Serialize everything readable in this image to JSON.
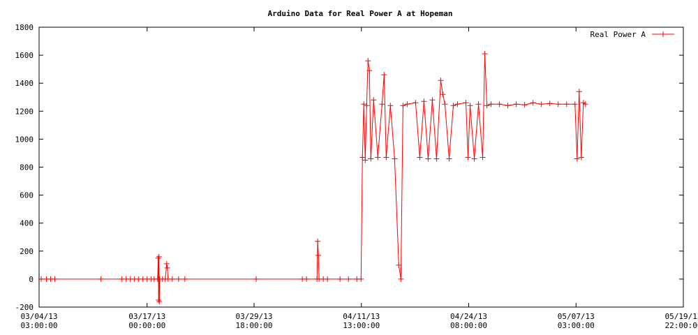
{
  "chart_data": {
    "type": "line",
    "title": "Arduino Data for Real Power A at Hopeman",
    "xlabel": "",
    "ylabel": "",
    "ylim": [
      -200,
      1800
    ],
    "yticks": [
      -200,
      0,
      200,
      400,
      600,
      800,
      1000,
      1200,
      1400,
      1600,
      1800
    ],
    "xlim": [
      "03/04/13 03:00:00",
      "05/19/13 22:00:00"
    ],
    "xticks": [
      {
        "date": "03/04/13",
        "time": "03:00:00"
      },
      {
        "date": "03/17/13",
        "time": "00:00:00"
      },
      {
        "date": "03/29/13",
        "time": "18:00:00"
      },
      {
        "date": "04/11/13",
        "time": "13:00:00"
      },
      {
        "date": "04/24/13",
        "time": "08:00:00"
      },
      {
        "date": "05/07/13",
        "time": "03:00:00"
      },
      {
        "date": "05/19/13",
        "time": "22:00:00"
      }
    ],
    "grid": false,
    "legend_position": "top-right",
    "series": [
      {
        "name": "Real Power A",
        "color": "#ff0000",
        "points": [
          [
            "03/04/13 09:00",
            0
          ],
          [
            "03/05/13 00:00",
            0
          ],
          [
            "03/05/13 12:00",
            0
          ],
          [
            "03/06/13 00:00",
            0
          ],
          [
            "03/11/13 12:00",
            0
          ],
          [
            "03/14/13 00:00",
            0
          ],
          [
            "03/14/13 12:00",
            0
          ],
          [
            "03/15/13 00:00",
            0
          ],
          [
            "03/15/13 12:00",
            0
          ],
          [
            "03/16/13 00:00",
            0
          ],
          [
            "03/16/13 12:00",
            0
          ],
          [
            "03/17/13 00:00",
            0
          ],
          [
            "03/17/13 12:00",
            0
          ],
          [
            "03/17/13 20:00",
            0
          ],
          [
            "03/18/13 06:00",
            0
          ],
          [
            "03/18/13 08:00",
            150
          ],
          [
            "03/18/13 09:00",
            -150
          ],
          [
            "03/18/13 10:00",
            160
          ],
          [
            "03/18/13 11:00",
            -160
          ],
          [
            "03/18/13 12:00",
            0
          ],
          [
            "03/18/13 20:00",
            0
          ],
          [
            "03/19/13 04:00",
            0
          ],
          [
            "03/19/13 08:00",
            110
          ],
          [
            "03/19/13 10:00",
            80
          ],
          [
            "03/19/13 12:00",
            0
          ],
          [
            "03/20/13 00:00",
            0
          ],
          [
            "03/20/13 18:00",
            0
          ],
          [
            "03/21/13 12:00",
            0
          ],
          [
            "03/30/13 00:00",
            0
          ],
          [
            "04/04/13 12:00",
            0
          ],
          [
            "04/05/13 00:00",
            0
          ],
          [
            "04/06/13 06:00",
            0
          ],
          [
            "04/06/13 08:00",
            270
          ],
          [
            "04/06/13 10:00",
            170
          ],
          [
            "04/06/13 12:00",
            0
          ],
          [
            "04/07/13 00:00",
            0
          ],
          [
            "04/07/13 12:00",
            0
          ],
          [
            "04/09/13 00:00",
            0
          ],
          [
            "04/10/13 00:00",
            0
          ],
          [
            "04/11/13 00:00",
            0
          ],
          [
            "04/11/13 12:00",
            0
          ],
          [
            "04/11/13 16:00",
            870
          ],
          [
            "04/11/13 20:00",
            1250
          ],
          [
            "04/12/13 00:00",
            850
          ],
          [
            "04/12/13 04:00",
            1240
          ],
          [
            "04/12/13 08:00",
            1560
          ],
          [
            "04/12/13 12:00",
            1490
          ],
          [
            "04/12/13 16:00",
            860
          ],
          [
            "04/13/13 00:00",
            1280
          ],
          [
            "04/13/13 12:00",
            870
          ],
          [
            "04/14/13 00:00",
            1250
          ],
          [
            "04/14/13 06:00",
            1460
          ],
          [
            "04/14/13 12:00",
            870
          ],
          [
            "04/15/13 00:00",
            1240
          ],
          [
            "04/15/13 12:00",
            860
          ],
          [
            "04/16/13 00:00",
            100
          ],
          [
            "04/16/13 06:00",
            0
          ],
          [
            "04/16/13 12:00",
            1240
          ],
          [
            "04/17/13 00:00",
            1250
          ],
          [
            "04/18/13 00:00",
            1260
          ],
          [
            "04/18/13 12:00",
            870
          ],
          [
            "04/19/13 00:00",
            1270
          ],
          [
            "04/19/13 12:00",
            860
          ],
          [
            "04/20/13 00:00",
            1280
          ],
          [
            "04/20/13 12:00",
            860
          ],
          [
            "04/21/13 00:00",
            1420
          ],
          [
            "04/21/13 06:00",
            1320
          ],
          [
            "04/21/13 12:00",
            1250
          ],
          [
            "04/22/13 00:00",
            860
          ],
          [
            "04/22/13 12:00",
            1240
          ],
          [
            "04/23/13 00:00",
            1250
          ],
          [
            "04/24/13 00:00",
            1260
          ],
          [
            "04/24/13 06:00",
            870
          ],
          [
            "04/24/13 12:00",
            1240
          ],
          [
            "04/25/13 00:00",
            860
          ],
          [
            "04/25/13 12:00",
            1250
          ],
          [
            "04/26/13 00:00",
            870
          ],
          [
            "04/26/13 06:00",
            1610
          ],
          [
            "04/26/13 12:00",
            1240
          ],
          [
            "04/27/13 00:00",
            1250
          ],
          [
            "04/28/13 00:00",
            1250
          ],
          [
            "04/29/13 00:00",
            1240
          ],
          [
            "04/30/13 00:00",
            1250
          ],
          [
            "05/01/13 00:00",
            1245
          ],
          [
            "05/02/13 00:00",
            1260
          ],
          [
            "05/03/13 00:00",
            1250
          ],
          [
            "05/04/13 00:00",
            1255
          ],
          [
            "05/05/13 00:00",
            1250
          ],
          [
            "05/06/13 00:00",
            1250
          ],
          [
            "05/07/13 00:00",
            1250
          ],
          [
            "05/07/13 06:00",
            860
          ],
          [
            "05/07/13 12:00",
            1340
          ],
          [
            "05/07/13 18:00",
            870
          ],
          [
            "05/08/13 00:00",
            1260
          ],
          [
            "05/08/13 06:00",
            1250
          ]
        ]
      }
    ]
  }
}
